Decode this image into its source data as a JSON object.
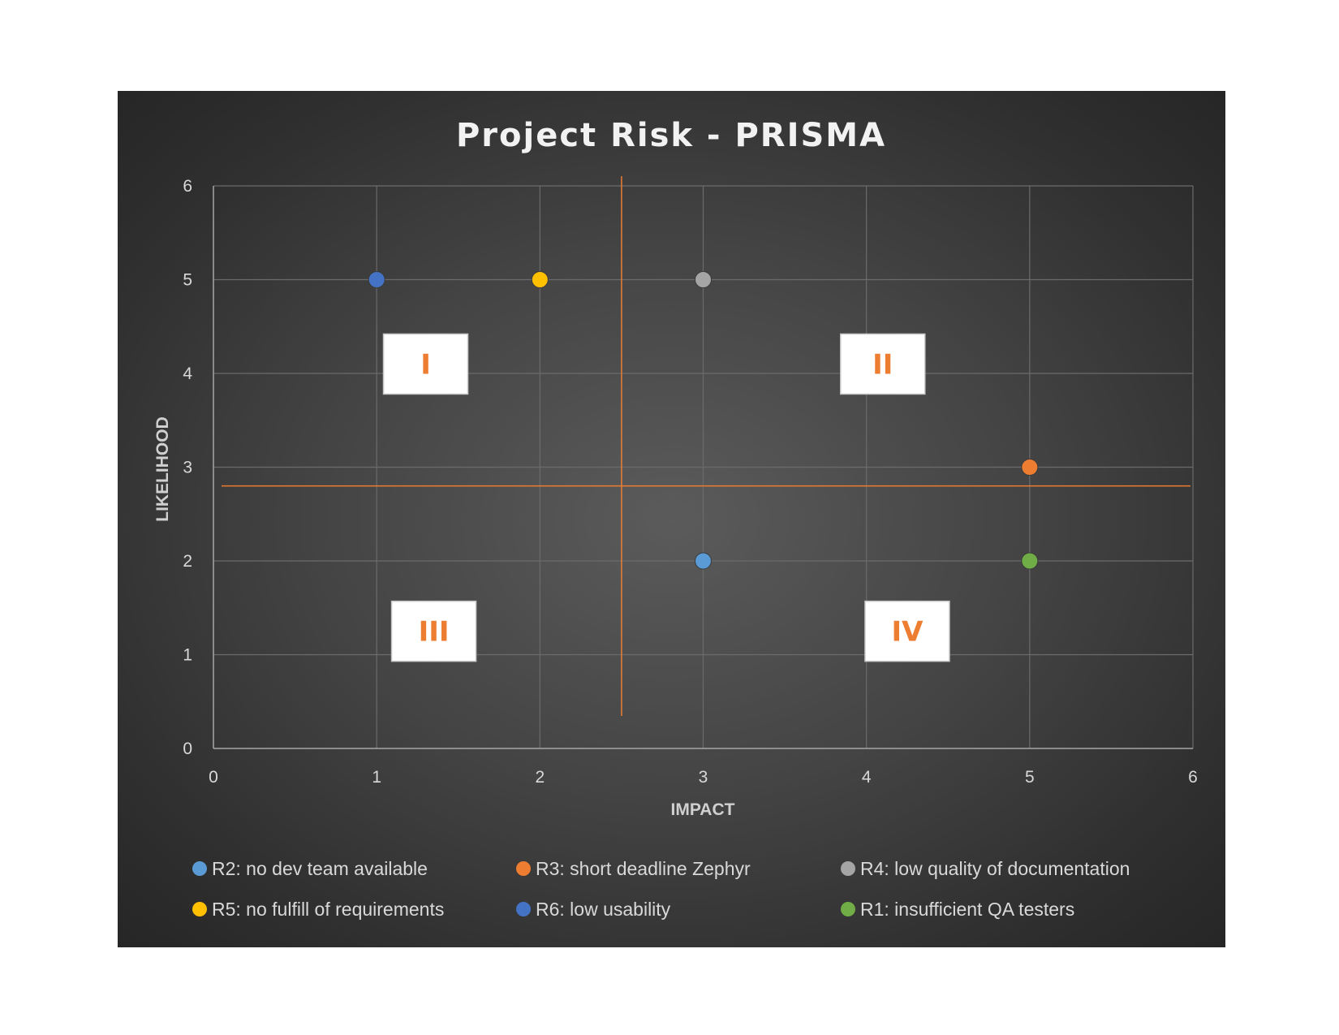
{
  "chart_data": {
    "type": "scatter",
    "title": "Project Risk - PRISMA",
    "xlabel": "IMPACT",
    "ylabel": "LIKELIHOOD",
    "xlim": [
      0,
      6
    ],
    "ylim": [
      0,
      6
    ],
    "xticks": [
      "0",
      "1",
      "2",
      "3",
      "4",
      "5",
      "6"
    ],
    "yticks": [
      "0",
      "1",
      "2",
      "3",
      "4",
      "5",
      "6"
    ],
    "grid": true,
    "legend_position": "bottom",
    "series": [
      {
        "name": "R2: no dev team available",
        "color": "#5b9bd5",
        "points": [
          {
            "x": 3,
            "y": 2
          }
        ]
      },
      {
        "name": "R3: short deadline Zephyr",
        "color": "#ed7d31",
        "points": [
          {
            "x": 5,
            "y": 3
          }
        ]
      },
      {
        "name": "R4: low quality of  documentation",
        "color": "#a5a5a5",
        "points": [
          {
            "x": 3,
            "y": 5
          }
        ]
      },
      {
        "name": "R5: no fulfill of requirements",
        "color": "#ffc000",
        "points": [
          {
            "x": 2,
            "y": 5
          }
        ]
      },
      {
        "name": "R6: low usability",
        "color": "#4472c4",
        "points": [
          {
            "x": 1,
            "y": 5
          }
        ]
      },
      {
        "name": "R1: insufficient QA testers",
        "color": "#70ad47",
        "points": [
          {
            "x": 5,
            "y": 2
          }
        ]
      }
    ],
    "quadrant_lines": {
      "x": 2.5,
      "y": 2.8,
      "color": "#ed7d31"
    },
    "quadrant_labels": [
      {
        "text": "I",
        "x": 1.3,
        "y": 4.1
      },
      {
        "text": "II",
        "x": 4.1,
        "y": 4.1
      },
      {
        "text": "III",
        "x": 1.35,
        "y": 1.25
      },
      {
        "text": "IV",
        "x": 4.25,
        "y": 1.25
      }
    ]
  }
}
